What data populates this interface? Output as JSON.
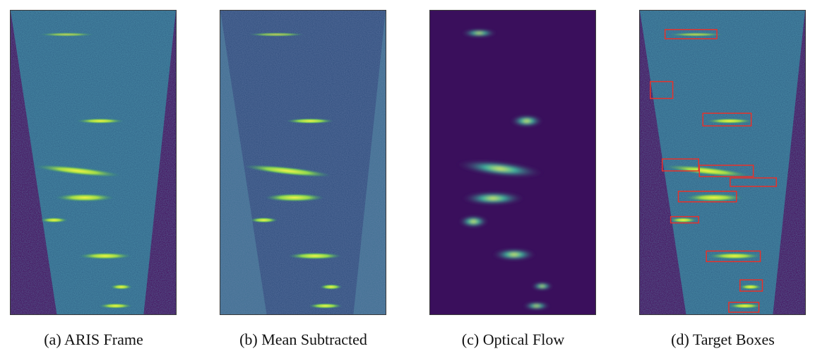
{
  "figure": {
    "panels": [
      {
        "id": "a",
        "caption": "(a) ARIS Frame"
      },
      {
        "id": "b",
        "caption": "(b) Mean Subtracted"
      },
      {
        "id": "c",
        "caption": "(c) Optical Flow"
      },
      {
        "id": "d",
        "caption": "(d) Target Boxes"
      }
    ]
  },
  "colors": {
    "background_dark": "#440154",
    "sonar_fill": "#2a6e8a",
    "mean_bg": "#3b6e8f",
    "flow_bg": "#3a0f5c",
    "echo_bright": "#e7f542",
    "echo_mid": "#5ec962",
    "box_red": "#e8312a"
  }
}
